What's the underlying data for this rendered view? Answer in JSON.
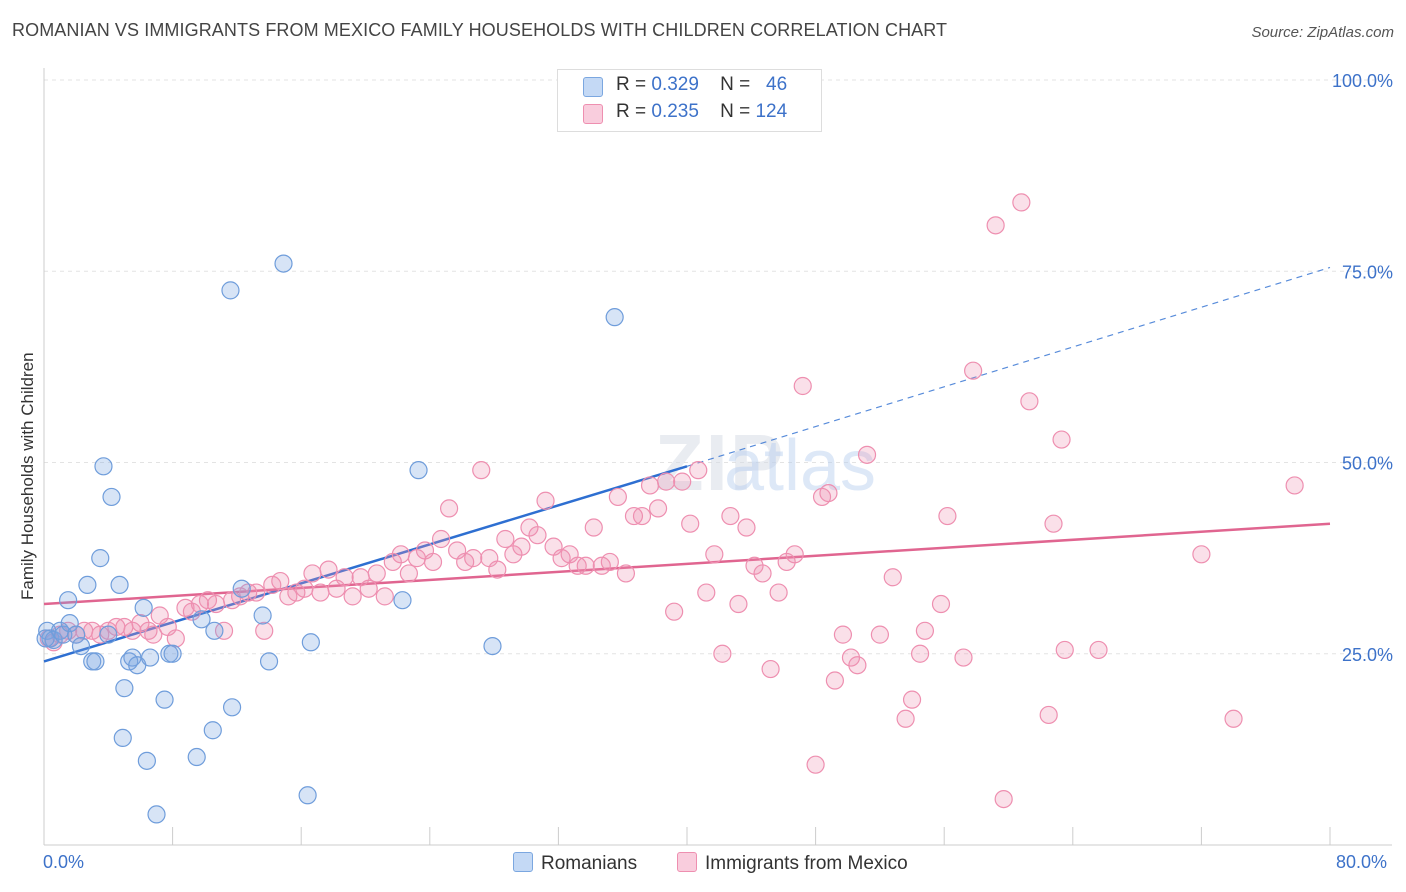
{
  "title": "ROMANIAN VS IMMIGRANTS FROM MEXICO FAMILY HOUSEHOLDS WITH CHILDREN CORRELATION CHART",
  "source": "Source: ZipAtlas.com",
  "colors": {
    "blue": "#7ba7e0",
    "blue_line": "#2e6fd1",
    "pink": "#ee8fb0",
    "pink_line": "#e06590",
    "tick": "#3d72c9"
  },
  "legend": {
    "rows": [
      {
        "r_label": "R =",
        "r_value": "0.329",
        "n_label": "N =",
        "n_value": "46"
      },
      {
        "r_label": "R =",
        "r_value": "0.235",
        "n_label": "N =",
        "n_value": "124"
      }
    ]
  },
  "bottom_legend": {
    "series1": "Romanians",
    "series2": "Immigrants from Mexico"
  },
  "x_ticks": {
    "left": "0.0%",
    "right": "80.0%"
  },
  "chart_data": {
    "type": "scatter",
    "title": "ROMANIAN VS IMMIGRANTS FROM MEXICO FAMILY HOUSEHOLDS WITH CHILDREN CORRELATION CHART",
    "xlabel": "",
    "ylabel": "Family Households with Children",
    "xlim": [
      0,
      80
    ],
    "ylim": [
      0,
      100
    ],
    "y_ticks": [
      "25.0%",
      "50.0%",
      "75.0%",
      "100.0%"
    ],
    "y_tick_values": [
      25,
      50,
      75,
      100
    ],
    "grid": true,
    "legend_position": "top-center",
    "watermark": "ZIPatlas",
    "series": [
      {
        "name": "Romanians",
        "color": "#7ba7e0",
        "trend": {
          "x": [
            0,
            40
          ],
          "y": [
            24.0,
            49.5
          ],
          "dashed_extension": [
            40,
            80
          ],
          "dashed_end_y": 75.5
        },
        "points": [
          [
            0.2,
            28.0
          ],
          [
            0.4,
            27.0
          ],
          [
            0.6,
            26.8
          ],
          [
            1.0,
            28.0
          ],
          [
            1.2,
            27.5
          ],
          [
            1.5,
            32.0
          ],
          [
            1.6,
            29.0
          ],
          [
            2.0,
            27.5
          ],
          [
            2.3,
            26.0
          ],
          [
            2.7,
            34.0
          ],
          [
            3.0,
            24.0
          ],
          [
            3.2,
            24.0
          ],
          [
            3.5,
            37.5
          ],
          [
            3.7,
            49.5
          ],
          [
            4.0,
            27.5
          ],
          [
            4.2,
            45.5
          ],
          [
            4.7,
            34.0
          ],
          [
            4.9,
            14.0
          ],
          [
            5.0,
            20.5
          ],
          [
            5.3,
            24.0
          ],
          [
            5.5,
            24.5
          ],
          [
            5.8,
            23.5
          ],
          [
            6.2,
            31.0
          ],
          [
            6.4,
            11.0
          ],
          [
            6.6,
            24.5
          ],
          [
            7.0,
            4.0
          ],
          [
            7.5,
            19.0
          ],
          [
            7.8,
            25.0
          ],
          [
            8.0,
            25.0
          ],
          [
            9.5,
            11.5
          ],
          [
            9.8,
            29.5
          ],
          [
            10.5,
            15.0
          ],
          [
            10.6,
            28.0
          ],
          [
            11.6,
            72.5
          ],
          [
            11.7,
            18.0
          ],
          [
            12.3,
            33.5
          ],
          [
            13.6,
            30.0
          ],
          [
            14.0,
            24.0
          ],
          [
            14.9,
            76.0
          ],
          [
            16.4,
            6.5
          ],
          [
            16.6,
            26.5
          ],
          [
            22.3,
            32.0
          ],
          [
            23.3,
            49.0
          ],
          [
            27.9,
            26.0
          ],
          [
            35.5,
            69.0
          ],
          [
            0.1,
            27.0
          ]
        ]
      },
      {
        "name": "Immigrants from Mexico",
        "color": "#ee8fb0",
        "trend": {
          "x": [
            0,
            80
          ],
          "y": [
            31.5,
            42.0
          ]
        },
        "points": [
          [
            0.3,
            27.0
          ],
          [
            0.6,
            26.5
          ],
          [
            1.0,
            27.5
          ],
          [
            1.5,
            28.0
          ],
          [
            2.0,
            27.5
          ],
          [
            2.5,
            28.0
          ],
          [
            3.0,
            28.0
          ],
          [
            3.5,
            27.5
          ],
          [
            4.0,
            28.0
          ],
          [
            4.5,
            28.5
          ],
          [
            5.0,
            28.5
          ],
          [
            5.5,
            28.0
          ],
          [
            6.0,
            29.0
          ],
          [
            6.5,
            28.0
          ],
          [
            6.8,
            27.5
          ],
          [
            7.2,
            30.0
          ],
          [
            7.7,
            28.5
          ],
          [
            8.2,
            27.0
          ],
          [
            8.8,
            31.0
          ],
          [
            9.2,
            30.5
          ],
          [
            9.7,
            31.5
          ],
          [
            10.2,
            32.0
          ],
          [
            10.7,
            31.5
          ],
          [
            11.2,
            28.0
          ],
          [
            11.7,
            32.0
          ],
          [
            12.2,
            32.5
          ],
          [
            12.7,
            33.0
          ],
          [
            13.2,
            33.0
          ],
          [
            13.7,
            28.0
          ],
          [
            14.2,
            34.0
          ],
          [
            14.7,
            34.5
          ],
          [
            15.2,
            32.5
          ],
          [
            15.7,
            33.0
          ],
          [
            16.2,
            33.5
          ],
          [
            16.7,
            35.5
          ],
          [
            17.2,
            33.0
          ],
          [
            17.7,
            36.0
          ],
          [
            18.2,
            33.5
          ],
          [
            18.7,
            35.0
          ],
          [
            19.2,
            32.5
          ],
          [
            19.7,
            35.0
          ],
          [
            20.2,
            33.5
          ],
          [
            20.7,
            35.5
          ],
          [
            21.2,
            32.5
          ],
          [
            21.7,
            37.0
          ],
          [
            22.2,
            38.0
          ],
          [
            22.7,
            35.5
          ],
          [
            23.2,
            37.5
          ],
          [
            23.7,
            38.5
          ],
          [
            24.2,
            37.0
          ],
          [
            24.7,
            40.0
          ],
          [
            25.2,
            44.0
          ],
          [
            25.7,
            38.5
          ],
          [
            26.2,
            37.0
          ],
          [
            26.7,
            37.5
          ],
          [
            27.2,
            49.0
          ],
          [
            27.7,
            37.5
          ],
          [
            28.2,
            36.0
          ],
          [
            28.7,
            40.0
          ],
          [
            29.2,
            38.0
          ],
          [
            29.7,
            39.0
          ],
          [
            30.2,
            41.5
          ],
          [
            30.7,
            40.5
          ],
          [
            31.2,
            45.0
          ],
          [
            31.7,
            39.0
          ],
          [
            32.2,
            37.5
          ],
          [
            32.7,
            38.0
          ],
          [
            33.2,
            36.5
          ],
          [
            33.7,
            36.5
          ],
          [
            34.2,
            41.5
          ],
          [
            34.7,
            36.5
          ],
          [
            35.2,
            37.0
          ],
          [
            35.7,
            45.5
          ],
          [
            36.2,
            35.5
          ],
          [
            36.7,
            43.0
          ],
          [
            37.2,
            43.0
          ],
          [
            37.7,
            47.0
          ],
          [
            38.2,
            44.0
          ],
          [
            38.7,
            47.5
          ],
          [
            39.2,
            30.5
          ],
          [
            39.7,
            47.5
          ],
          [
            40.2,
            42.0
          ],
          [
            40.7,
            49.0
          ],
          [
            41.2,
            33.0
          ],
          [
            41.7,
            38.0
          ],
          [
            42.2,
            25.0
          ],
          [
            42.7,
            43.0
          ],
          [
            43.2,
            31.5
          ],
          [
            43.7,
            41.5
          ],
          [
            44.2,
            36.5
          ],
          [
            44.7,
            35.5
          ],
          [
            45.2,
            23.0
          ],
          [
            45.7,
            33.0
          ],
          [
            46.2,
            37.0
          ],
          [
            46.7,
            38.0
          ],
          [
            47.2,
            60.0
          ],
          [
            48.0,
            10.5
          ],
          [
            48.4,
            45.5
          ],
          [
            48.8,
            46.0
          ],
          [
            49.2,
            21.5
          ],
          [
            49.7,
            27.5
          ],
          [
            50.2,
            24.5
          ],
          [
            50.6,
            23.5
          ],
          [
            51.2,
            51.0
          ],
          [
            52.0,
            27.5
          ],
          [
            52.8,
            35.0
          ],
          [
            53.6,
            16.5
          ],
          [
            54.0,
            19.0
          ],
          [
            54.5,
            25.0
          ],
          [
            54.8,
            28.0
          ],
          [
            55.8,
            31.5
          ],
          [
            56.2,
            43.0
          ],
          [
            57.2,
            24.5
          ],
          [
            57.8,
            62.0
          ],
          [
            59.2,
            81.0
          ],
          [
            59.7,
            6.0
          ],
          [
            60.8,
            84.0
          ],
          [
            61.3,
            58.0
          ],
          [
            62.5,
            17.0
          ],
          [
            62.8,
            42.0
          ],
          [
            63.3,
            53.0
          ],
          [
            63.5,
            25.5
          ],
          [
            65.6,
            25.5
          ],
          [
            72.0,
            38.0
          ],
          [
            74.0,
            16.5
          ],
          [
            77.8,
            47.0
          ]
        ]
      }
    ]
  }
}
